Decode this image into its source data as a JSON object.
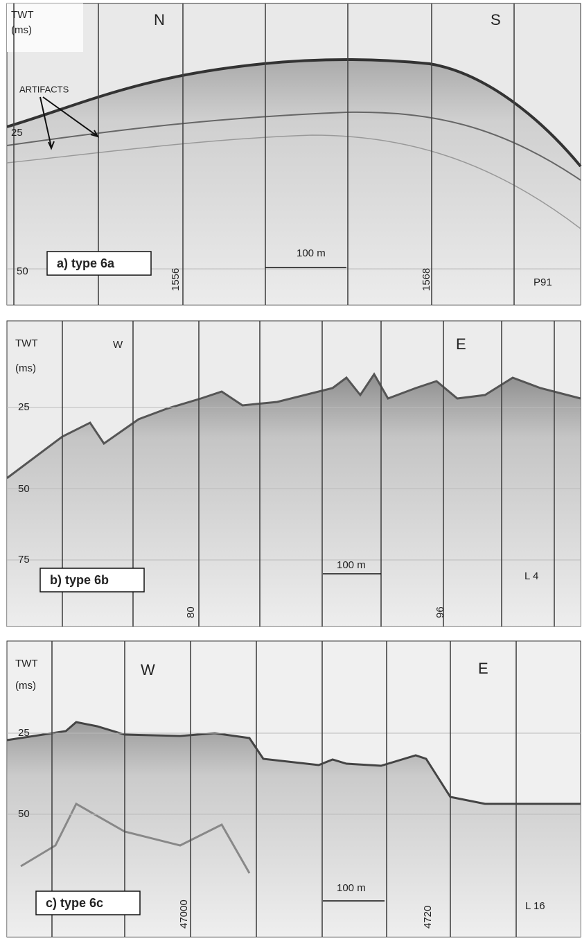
{
  "panels": [
    {
      "twt": "TWT",
      "unit": "(ms)",
      "directions": [
        "N",
        "S"
      ],
      "annotation": "ARTIFACTS",
      "depth_labels": [
        "25",
        "50"
      ],
      "label": "a) type 6a",
      "trace_labels": [
        "1556",
        "1568"
      ],
      "scale_bar": "100 m",
      "line_id": "P91"
    },
    {
      "twt": "TWT",
      "unit": "(ms)",
      "directions": [
        "W",
        "E"
      ],
      "depth_labels": [
        "25",
        "50",
        "75"
      ],
      "label": "b) type 6b",
      "trace_labels": [
        "80",
        "96"
      ],
      "scale_bar": "100 m",
      "line_id": "L 4"
    },
    {
      "twt": "TWT",
      "unit": "(ms)",
      "directions": [
        "W",
        "E"
      ],
      "depth_labels": [
        "25",
        "50"
      ],
      "label": "c) type 6c",
      "trace_labels": [
        "47000",
        "4720"
      ],
      "scale_bar": "100 m",
      "line_id": "L 16"
    }
  ]
}
